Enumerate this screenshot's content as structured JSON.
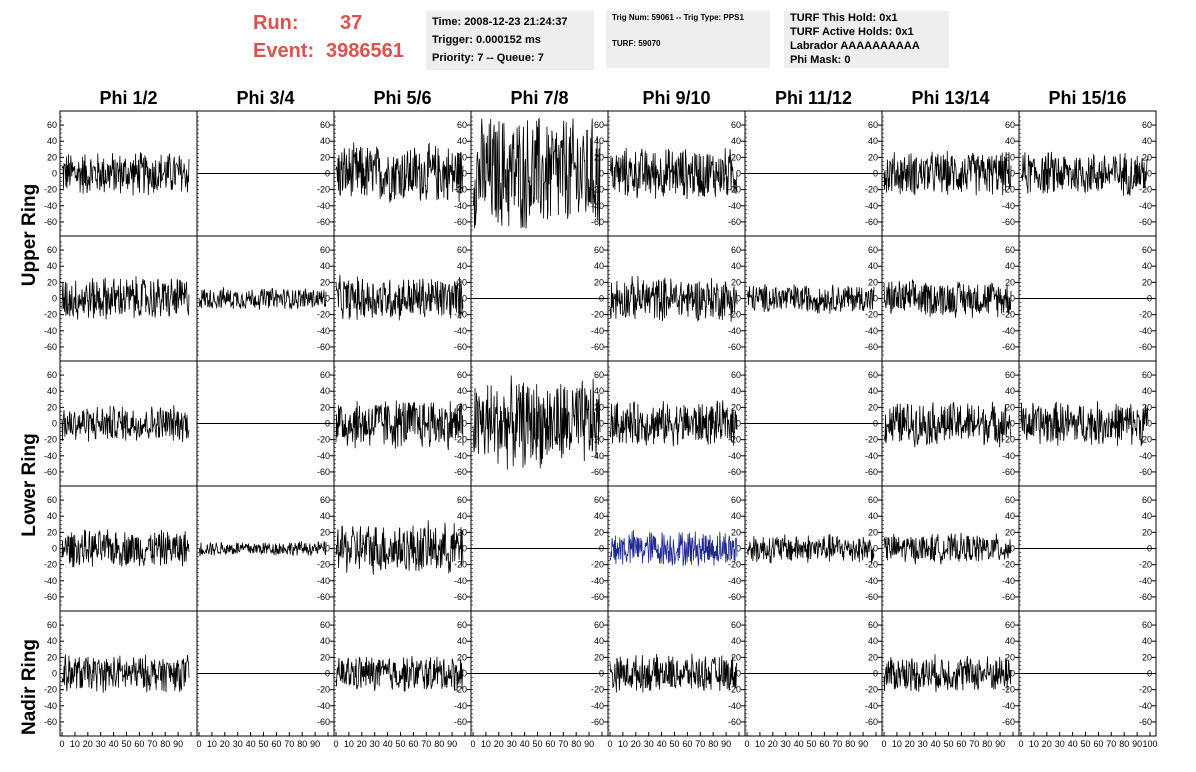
{
  "header": {
    "run_label": "Run:",
    "run_value": "37",
    "event_label": "Event:",
    "event_value": "3986561"
  },
  "info_box_1": {
    "time": "Time: 2008-12-23 21:24:37",
    "trigger": "Trigger: 0.000152 ms",
    "priority": "Priority: 7 -- Queue: 7"
  },
  "info_box_2": {
    "trig": "Trig Num: 59061 -- Trig Type: PPS1",
    "turf": "TURF: 59070"
  },
  "info_box_3": {
    "hold": "TURF This Hold: 0x1",
    "active": "TURF Active Holds: 0x1",
    "labrador": "Labrador AAAAAAAAAA",
    "mask": "Phi Mask: 0"
  },
  "columns": [
    "Phi 1/2",
    "Phi 3/4",
    "Phi 5/6",
    "Phi 7/8",
    "Phi 9/10",
    "Phi 11/12",
    "Phi 13/14",
    "Phi 15/16"
  ],
  "rows": [
    "Upper Ring",
    "Lower Ring",
    "Nadir Ring"
  ],
  "colors": {
    "trace": "#000000",
    "highlight_trace": "#1f2a8c",
    "run_text": "#d9534f",
    "box_bg": "#eeeeee"
  },
  "chart_data": {
    "type": "line",
    "ylim": [
      -70,
      70
    ],
    "yticks": [
      -60,
      -40,
      -20,
      0,
      20,
      40,
      60
    ],
    "xlim": [
      0,
      100
    ],
    "xticks": [
      0,
      10,
      20,
      30,
      40,
      50,
      60,
      70,
      80,
      90,
      100
    ],
    "panels": [
      [
        30,
        0,
        40,
        80,
        35,
        0,
        30,
        30
      ],
      [
        30,
        15,
        30,
        0,
        30,
        20,
        25,
        0
      ],
      [
        25,
        0,
        35,
        60,
        30,
        0,
        30,
        30
      ],
      [
        25,
        10,
        35,
        0,
        25,
        20,
        20,
        0
      ],
      [
        25,
        0,
        25,
        0,
        25,
        0,
        25,
        0
      ]
    ],
    "highlight_panel": [
      3,
      4
    ]
  }
}
